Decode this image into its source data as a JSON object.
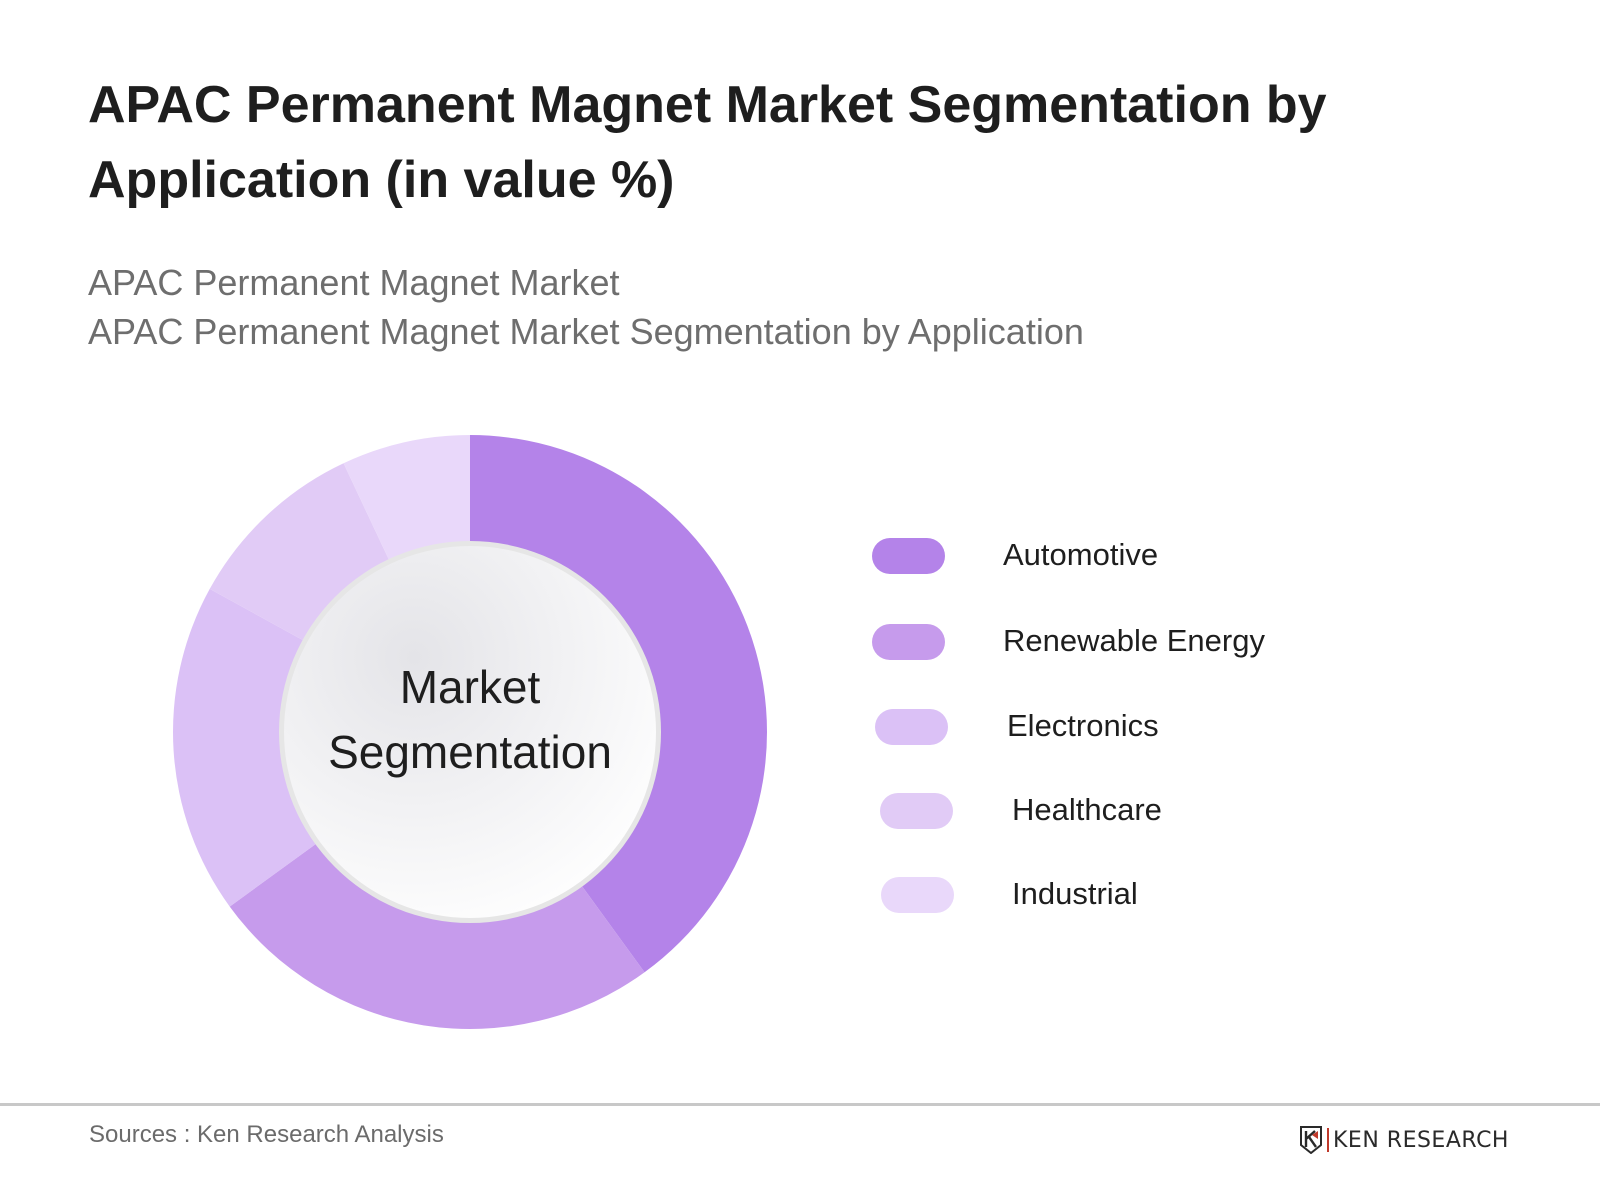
{
  "header": {
    "title": "APAC Permanent Magnet Market Segmentation by Application (in value %)",
    "subtitle_line1": "APAC Permanent Magnet Market",
    "subtitle_line2": "APAC Permanent Magnet Market Segmentation by Application"
  },
  "center_label": {
    "line1": "Market",
    "line2": "Segmentation"
  },
  "legend": [
    {
      "label": "Automotive",
      "color": "#b483e9"
    },
    {
      "label": "Renewable Energy",
      "color": "#c69bec"
    },
    {
      "label": "Electronics",
      "color": "#dbc1f6"
    },
    {
      "label": "Healthcare",
      "color": "#e1cbf6"
    },
    {
      "label": "Industrial",
      "color": "#e9d8fa"
    }
  ],
  "footer": {
    "sources": "Sources : Ken Research Analysis",
    "logo_text": "KEN RESEARCH"
  },
  "chart_data": {
    "type": "pie",
    "variant": "donut",
    "title": "APAC Permanent Magnet Market Segmentation by Application (in value %)",
    "subtitle": "APAC Permanent Magnet Market Segmentation by Application",
    "center_text": "Market Segmentation",
    "categories": [
      "Automotive",
      "Renewable Energy",
      "Electronics",
      "Healthcare",
      "Industrial"
    ],
    "values": [
      40,
      25,
      18,
      10,
      7
    ],
    "unit": "%",
    "colors": [
      "#b483e9",
      "#c69bec",
      "#dbc1f6",
      "#e1cbf6",
      "#e9d8fa"
    ],
    "start_angle": "12 o'clock, clockwise",
    "legend_position": "right",
    "data_labels": false
  }
}
